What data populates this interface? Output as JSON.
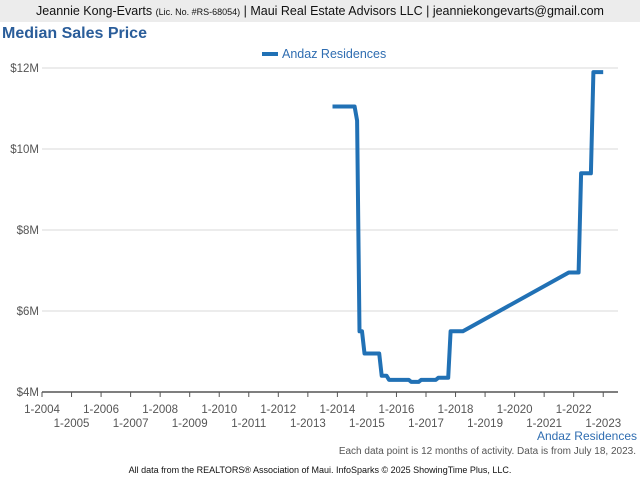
{
  "header": {
    "agent_name": "Jeannie Kong-Evarts",
    "license": "(Lic. No. #RS-68054)",
    "rest": "| Maui Real Estate Advisors LLC | jeanniekongevarts@gmail.com"
  },
  "colors": {
    "series": "#2171b5",
    "title": "#2a5d9a",
    "grid": "#d9d9d9",
    "axis": "#555555"
  },
  "chart_data": {
    "type": "line",
    "title": "Median Sales Price",
    "ylim": [
      4000000,
      12000000
    ],
    "y_ticks": [
      {
        "value": 4000000,
        "label": "$4M"
      },
      {
        "value": 6000000,
        "label": "$6M"
      },
      {
        "value": 8000000,
        "label": "$8M"
      },
      {
        "value": 10000000,
        "label": "$10M"
      },
      {
        "value": 12000000,
        "label": "$12M"
      }
    ],
    "xlim": [
      "2004-01",
      "2023-07"
    ],
    "x_ticks_upper": [
      "1-2004",
      "1-2006",
      "1-2008",
      "1-2010",
      "1-2012",
      "1-2014",
      "1-2016",
      "1-2018",
      "1-2020",
      "1-2022"
    ],
    "x_ticks_lower": [
      "1-2005",
      "1-2007",
      "1-2009",
      "1-2011",
      "1-2013",
      "1-2015",
      "1-2017",
      "1-2019",
      "1-2021",
      "1-2023"
    ],
    "grid": true,
    "legend_position": "top-center",
    "series": [
      {
        "name": "Andaz Residences",
        "points": [
          [
            "2013-11",
            11050000
          ],
          [
            "2014-08",
            11050000
          ],
          [
            "2014-09",
            10700000
          ],
          [
            "2014-10",
            5500000
          ],
          [
            "2014-11",
            5500000
          ],
          [
            "2014-12",
            4950000
          ],
          [
            "2015-06",
            4950000
          ],
          [
            "2015-07",
            4400000
          ],
          [
            "2015-09",
            4400000
          ],
          [
            "2015-10",
            4300000
          ],
          [
            "2016-06",
            4300000
          ],
          [
            "2016-07",
            4250000
          ],
          [
            "2016-10",
            4250000
          ],
          [
            "2016-11",
            4300000
          ],
          [
            "2017-05",
            4300000
          ],
          [
            "2017-06",
            4350000
          ],
          [
            "2017-10",
            4350000
          ],
          [
            "2017-11",
            5500000
          ],
          [
            "2018-04",
            5500000
          ],
          [
            "2021-11",
            6950000
          ],
          [
            "2022-03",
            6950000
          ],
          [
            "2022-04",
            9400000
          ],
          [
            "2022-08",
            9400000
          ],
          [
            "2022-09",
            11900000
          ],
          [
            "2023-01",
            11900000
          ]
        ]
      }
    ]
  },
  "footer": {
    "series_tag": "Andaz Residences",
    "note": "Each data point is 12 months of activity. Data is from July 18, 2023.",
    "source": "All data from the REALTORS® Association of Maui. InfoSparks © 2025 ShowingTime Plus, LLC."
  }
}
